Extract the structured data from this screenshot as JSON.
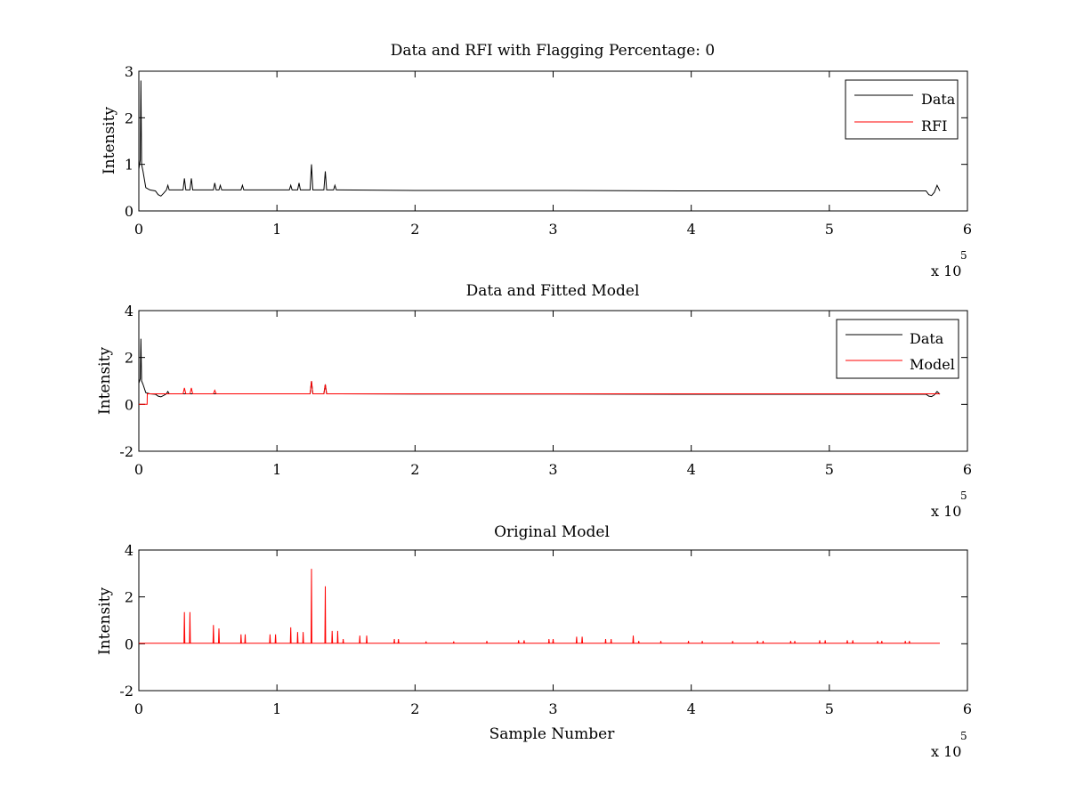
{
  "chart_data": [
    {
      "type": "line",
      "title": "Data and RFI with Flagging Percentage: 0",
      "xlabel": "",
      "ylabel": "Intensity",
      "xlim": [
        0,
        6
      ],
      "ylim": [
        0,
        3
      ],
      "xticks": [
        "0",
        "1",
        "2",
        "3",
        "4",
        "5",
        "6"
      ],
      "yticks": [
        "0",
        "1",
        "2",
        "3"
      ],
      "x_multiplier": "x 10",
      "x_multiplier_exp": "5",
      "legend": {
        "position": "top-right",
        "entries": [
          "Data",
          "RFI"
        ]
      },
      "series": [
        {
          "name": "Data",
          "color": "#000000",
          "points": [
            [
              0,
              0.9
            ],
            [
              0.01,
              1.1
            ],
            [
              0.015,
              2.8
            ],
            [
              0.02,
              1.0
            ],
            [
              0.03,
              0.85
            ],
            [
              0.05,
              0.5
            ],
            [
              0.08,
              0.45
            ],
            [
              0.12,
              0.43
            ],
            [
              0.14,
              0.35
            ],
            [
              0.16,
              0.32
            ],
            [
              0.18,
              0.38
            ],
            [
              0.2,
              0.45
            ],
            [
              0.21,
              0.55
            ],
            [
              0.22,
              0.45
            ],
            [
              0.32,
              0.45
            ],
            [
              0.33,
              0.7
            ],
            [
              0.34,
              0.45
            ],
            [
              0.37,
              0.45
            ],
            [
              0.38,
              0.7
            ],
            [
              0.39,
              0.45
            ],
            [
              0.54,
              0.45
            ],
            [
              0.55,
              0.6
            ],
            [
              0.56,
              0.45
            ],
            [
              0.58,
              0.45
            ],
            [
              0.59,
              0.55
            ],
            [
              0.6,
              0.45
            ],
            [
              0.74,
              0.45
            ],
            [
              0.75,
              0.55
            ],
            [
              0.76,
              0.45
            ],
            [
              1.09,
              0.45
            ],
            [
              1.1,
              0.55
            ],
            [
              1.11,
              0.45
            ],
            [
              1.15,
              0.45
            ],
            [
              1.16,
              0.6
            ],
            [
              1.17,
              0.45
            ],
            [
              1.24,
              0.45
            ],
            [
              1.25,
              1.0
            ],
            [
              1.26,
              0.45
            ],
            [
              1.34,
              0.45
            ],
            [
              1.35,
              0.85
            ],
            [
              1.36,
              0.45
            ],
            [
              1.41,
              0.45
            ],
            [
              1.42,
              0.55
            ],
            [
              1.43,
              0.45
            ],
            [
              2.0,
              0.44
            ],
            [
              3.0,
              0.44
            ],
            [
              4.0,
              0.43
            ],
            [
              5.0,
              0.43
            ],
            [
              5.7,
              0.43
            ],
            [
              5.72,
              0.35
            ],
            [
              5.74,
              0.33
            ],
            [
              5.76,
              0.4
            ],
            [
              5.78,
              0.55
            ],
            [
              5.8,
              0.43
            ]
          ]
        },
        {
          "name": "RFI",
          "color": "#ff0000",
          "points": []
        }
      ]
    },
    {
      "type": "line",
      "title": "Data and Fitted Model",
      "xlabel": "",
      "ylabel": "Intensity",
      "xlim": [
        0,
        6
      ],
      "ylim": [
        -2,
        4
      ],
      "xticks": [
        "0",
        "1",
        "2",
        "3",
        "4",
        "5",
        "6"
      ],
      "yticks": [
        "-2",
        "0",
        "2",
        "4"
      ],
      "x_multiplier": "x 10",
      "x_multiplier_exp": "5",
      "legend": {
        "position": "top-right",
        "entries": [
          "Data",
          "Model"
        ]
      },
      "series": [
        {
          "name": "Data",
          "color": "#000000",
          "points": [
            [
              0,
              0.9
            ],
            [
              0.01,
              1.1
            ],
            [
              0.015,
              2.8
            ],
            [
              0.02,
              1.0
            ],
            [
              0.03,
              0.85
            ],
            [
              0.05,
              0.5
            ],
            [
              0.08,
              0.45
            ],
            [
              0.12,
              0.43
            ],
            [
              0.14,
              0.35
            ],
            [
              0.16,
              0.32
            ],
            [
              0.18,
              0.38
            ],
            [
              0.2,
              0.45
            ],
            [
              0.21,
              0.55
            ],
            [
              0.22,
              0.45
            ],
            [
              1.24,
              0.45
            ],
            [
              1.25,
              1.0
            ],
            [
              1.26,
              0.45
            ],
            [
              1.34,
              0.45
            ],
            [
              1.35,
              0.85
            ],
            [
              1.36,
              0.45
            ],
            [
              2.0,
              0.44
            ],
            [
              3.0,
              0.44
            ],
            [
              4.0,
              0.43
            ],
            [
              5.0,
              0.43
            ],
            [
              5.7,
              0.43
            ],
            [
              5.72,
              0.35
            ],
            [
              5.74,
              0.33
            ],
            [
              5.76,
              0.4
            ],
            [
              5.78,
              0.55
            ],
            [
              5.8,
              0.43
            ]
          ]
        },
        {
          "name": "Model",
          "color": "#ff0000",
          "points": [
            [
              0,
              0.0
            ],
            [
              0.06,
              0.0
            ],
            [
              0.061,
              0.45
            ],
            [
              0.32,
              0.45
            ],
            [
              0.33,
              0.7
            ],
            [
              0.34,
              0.45
            ],
            [
              0.37,
              0.45
            ],
            [
              0.38,
              0.7
            ],
            [
              0.39,
              0.45
            ],
            [
              0.54,
              0.45
            ],
            [
              0.55,
              0.6
            ],
            [
              0.56,
              0.45
            ],
            [
              1.24,
              0.45
            ],
            [
              1.25,
              1.0
            ],
            [
              1.26,
              0.45
            ],
            [
              1.34,
              0.45
            ],
            [
              1.35,
              0.85
            ],
            [
              1.36,
              0.45
            ],
            [
              3.0,
              0.45
            ],
            [
              5.7,
              0.45
            ],
            [
              5.8,
              0.45
            ]
          ]
        }
      ]
    },
    {
      "type": "line",
      "title": "Original Model",
      "xlabel": "Sample Number",
      "ylabel": "Intensity",
      "xlim": [
        0,
        6
      ],
      "ylim": [
        -2,
        4
      ],
      "xticks": [
        "0",
        "1",
        "2",
        "3",
        "4",
        "5",
        "6"
      ],
      "yticks": [
        "-2",
        "0",
        "2",
        "4"
      ],
      "x_multiplier": "x 10",
      "x_multiplier_exp": "5",
      "series": [
        {
          "color": "#ff0000",
          "baseline": 0.02,
          "xmax": 5.8,
          "spikes": [
            [
              0.33,
              1.35
            ],
            [
              0.37,
              1.35
            ],
            [
              0.54,
              0.8
            ],
            [
              0.58,
              0.65
            ],
            [
              0.74,
              0.4
            ],
            [
              0.77,
              0.4
            ],
            [
              0.95,
              0.4
            ],
            [
              0.99,
              0.4
            ],
            [
              1.1,
              0.7
            ],
            [
              1.15,
              0.5
            ],
            [
              1.19,
              0.5
            ],
            [
              1.25,
              3.2
            ],
            [
              1.35,
              2.45
            ],
            [
              1.4,
              0.55
            ],
            [
              1.44,
              0.55
            ],
            [
              1.48,
              0.2
            ],
            [
              1.6,
              0.35
            ],
            [
              1.65,
              0.35
            ],
            [
              1.85,
              0.2
            ],
            [
              1.88,
              0.2
            ],
            [
              2.08,
              0.1
            ],
            [
              2.28,
              0.1
            ],
            [
              2.52,
              0.12
            ],
            [
              2.75,
              0.15
            ],
            [
              2.79,
              0.15
            ],
            [
              2.97,
              0.2
            ],
            [
              3.0,
              0.2
            ],
            [
              3.17,
              0.3
            ],
            [
              3.21,
              0.3
            ],
            [
              3.38,
              0.2
            ],
            [
              3.42,
              0.2
            ],
            [
              3.58,
              0.35
            ],
            [
              3.62,
              0.12
            ],
            [
              3.78,
              0.12
            ],
            [
              3.98,
              0.12
            ],
            [
              4.08,
              0.12
            ],
            [
              4.3,
              0.12
            ],
            [
              4.48,
              0.12
            ],
            [
              4.52,
              0.12
            ],
            [
              4.72,
              0.12
            ],
            [
              4.75,
              0.12
            ],
            [
              4.93,
              0.15
            ],
            [
              4.97,
              0.15
            ],
            [
              5.13,
              0.15
            ],
            [
              5.17,
              0.15
            ],
            [
              5.35,
              0.12
            ],
            [
              5.38,
              0.12
            ],
            [
              5.55,
              0.12
            ],
            [
              5.58,
              0.12
            ]
          ]
        }
      ]
    }
  ]
}
